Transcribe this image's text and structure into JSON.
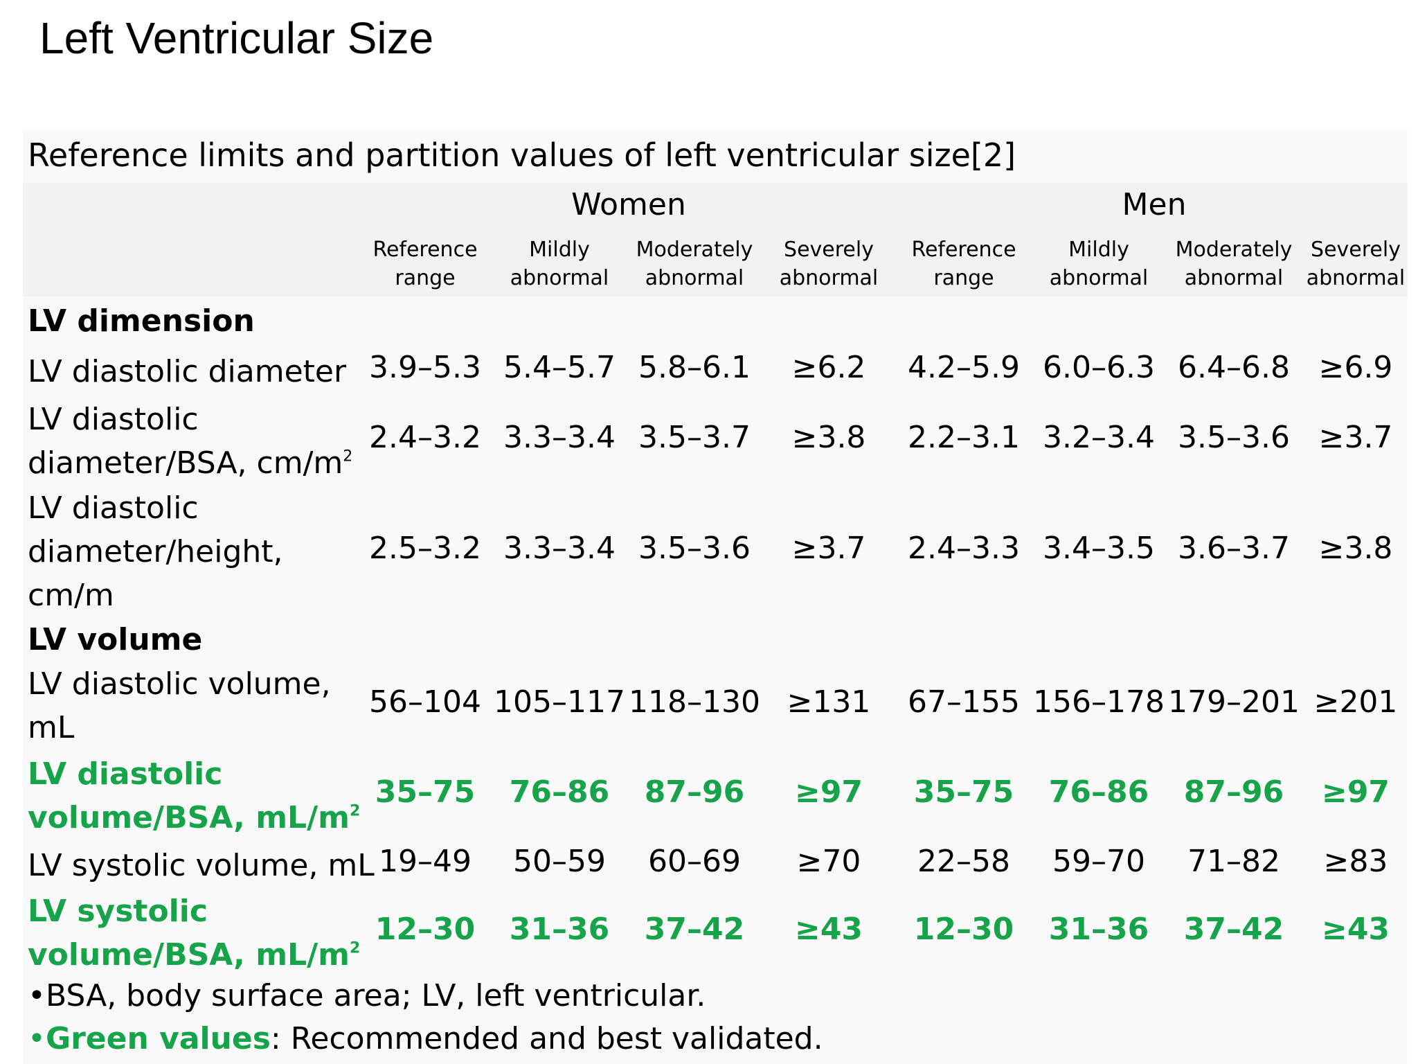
{
  "slide": {
    "title": "Left Ventricular Size"
  },
  "table": {
    "caption": "Reference limits and partition values of left ventricular size[2]",
    "groups": [
      "Women",
      "Men"
    ],
    "subheaders": [
      [
        "Reference",
        "range"
      ],
      [
        "Mildly",
        "abnormal"
      ],
      [
        "Moderately",
        "abnormal"
      ],
      [
        "Severely",
        "abnormal"
      ]
    ],
    "sections": [
      {
        "title": "LV dimension",
        "rows": [
          {
            "label": [
              "LV diastolic diameter"
            ],
            "sup": "",
            "green": false,
            "values": [
              "3.9–5.3",
              "5.4–5.7",
              "5.8–6.1",
              "≥6.2",
              "4.2–5.9",
              "6.0–6.3",
              "6.4–6.8",
              "≥6.9"
            ]
          },
          {
            "label": [
              "LV diastolic",
              "diameter/BSA, cm/m"
            ],
            "sup": "2",
            "green": false,
            "values": [
              "2.4–3.2",
              "3.3–3.4",
              "3.5–3.7",
              "≥3.8",
              "2.2–3.1",
              "3.2–3.4",
              "3.5–3.6",
              "≥3.7"
            ]
          },
          {
            "label": [
              "LV diastolic",
              "diameter/height,",
              "cm/m"
            ],
            "sup": "",
            "green": false,
            "values": [
              "2.5–3.2",
              "3.3–3.4",
              "3.5–3.6",
              "≥3.7",
              "2.4–3.3",
              "3.4–3.5",
              "3.6–3.7",
              "≥3.8"
            ]
          }
        ]
      },
      {
        "title": "LV volume",
        "rows": [
          {
            "label": [
              "LV diastolic volume,",
              "mL"
            ],
            "sup": "",
            "green": false,
            "values": [
              "56–104",
              "105–117",
              "118–130",
              "≥131",
              "67–155",
              "156–178",
              "179–201",
              "≥201"
            ]
          },
          {
            "label": [
              "LV diastolic",
              "volume/BSA, mL/m"
            ],
            "sup": "2",
            "green": true,
            "values": [
              "35–75",
              "76–86",
              "87–96",
              "≥97",
              "35–75",
              "76–86",
              "87–96",
              "≥97"
            ]
          },
          {
            "label": [
              "LV systolic volume, mL"
            ],
            "sup": "",
            "green": false,
            "values": [
              "19–49",
              "50–59",
              "60–69",
              "≥70",
              "22–58",
              "59–70",
              "71–82",
              "≥83"
            ]
          },
          {
            "label": [
              "LV systolic",
              "volume/BSA, mL/m"
            ],
            "sup": "2",
            "green": true,
            "values": [
              "12–30",
              "31–36",
              "37–42",
              "≥43",
              "12–30",
              "31–36",
              "37–42",
              "≥43"
            ]
          }
        ]
      }
    ]
  },
  "footnotes": {
    "abbrev": "•BSA, body surface area; LV, left ventricular.",
    "bullet": "•",
    "green_label": "Green values",
    "green_rest": ": Recommended and best validated."
  },
  "colors": {
    "green": "#16a34a",
    "panel": "#f9f9f9",
    "header_band": "#f2f2f2"
  }
}
